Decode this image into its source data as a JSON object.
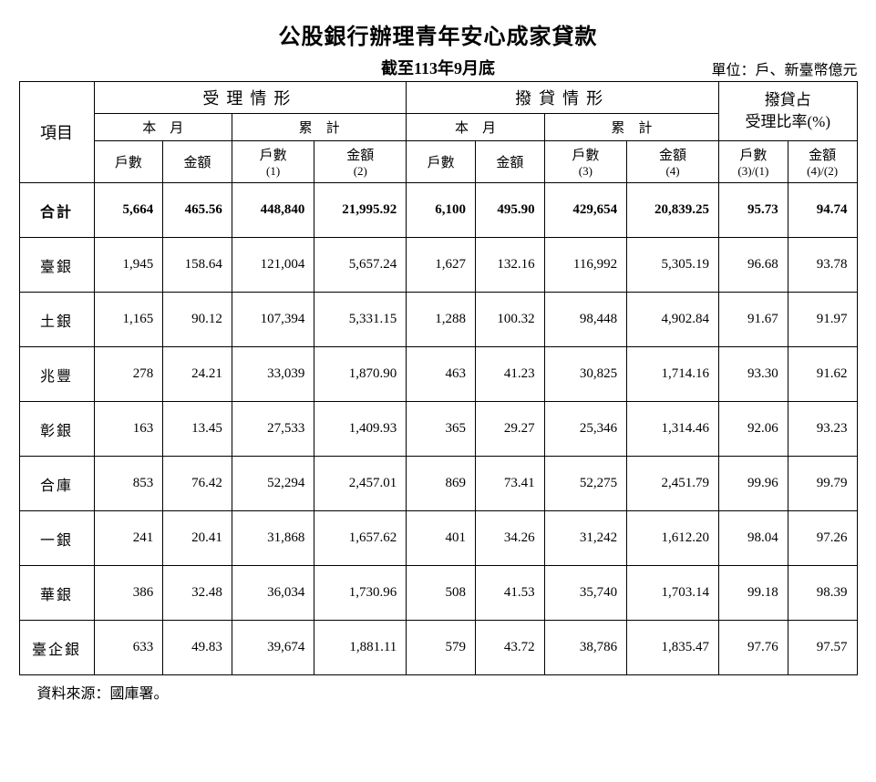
{
  "title": "公股銀行辦理青年安心成家貸款",
  "subtitle": "截至113年9月底",
  "unit": "單位：戶、新臺幣億元",
  "source": "資料來源：國庫署。",
  "headers": {
    "item": "項目",
    "accept": "受理情形",
    "disburse": "撥貸情形",
    "ratio_line1": "撥貸占",
    "ratio_line2": "受理比率(%)",
    "month": "本　月",
    "cum": "累　計",
    "count": "戶數",
    "amount": "金額",
    "sub1": "(1)",
    "sub2": "(2)",
    "sub3": "(3)",
    "sub4": "(4)",
    "ratio31": "(3)/(1)",
    "ratio42": "(4)/(2)"
  },
  "rows": [
    {
      "label": "合計",
      "bold": true,
      "c": [
        "5,664",
        "465.56",
        "448,840",
        "21,995.92",
        "6,100",
        "495.90",
        "429,654",
        "20,839.25",
        "95.73",
        "94.74"
      ]
    },
    {
      "label": "臺銀",
      "bold": false,
      "c": [
        "1,945",
        "158.64",
        "121,004",
        "5,657.24",
        "1,627",
        "132.16",
        "116,992",
        "5,305.19",
        "96.68",
        "93.78"
      ]
    },
    {
      "label": "土銀",
      "bold": false,
      "c": [
        "1,165",
        "90.12",
        "107,394",
        "5,331.15",
        "1,288",
        "100.32",
        "98,448",
        "4,902.84",
        "91.67",
        "91.97"
      ]
    },
    {
      "label": "兆豐",
      "bold": false,
      "c": [
        "278",
        "24.21",
        "33,039",
        "1,870.90",
        "463",
        "41.23",
        "30,825",
        "1,714.16",
        "93.30",
        "91.62"
      ]
    },
    {
      "label": "彰銀",
      "bold": false,
      "c": [
        "163",
        "13.45",
        "27,533",
        "1,409.93",
        "365",
        "29.27",
        "25,346",
        "1,314.46",
        "92.06",
        "93.23"
      ]
    },
    {
      "label": "合庫",
      "bold": false,
      "c": [
        "853",
        "76.42",
        "52,294",
        "2,457.01",
        "869",
        "73.41",
        "52,275",
        "2,451.79",
        "99.96",
        "99.79"
      ]
    },
    {
      "label": "一銀",
      "bold": false,
      "c": [
        "241",
        "20.41",
        "31,868",
        "1,657.62",
        "401",
        "34.26",
        "31,242",
        "1,612.20",
        "98.04",
        "97.26"
      ]
    },
    {
      "label": "華銀",
      "bold": false,
      "c": [
        "386",
        "32.48",
        "36,034",
        "1,730.96",
        "508",
        "41.53",
        "35,740",
        "1,703.14",
        "99.18",
        "98.39"
      ]
    },
    {
      "label": "臺企銀",
      "bold": false,
      "c": [
        "633",
        "49.83",
        "39,674",
        "1,881.11",
        "579",
        "43.72",
        "38,786",
        "1,835.47",
        "97.76",
        "97.57"
      ]
    }
  ],
  "colwidths": [
    "78",
    "72",
    "72",
    "86",
    "96",
    "72",
    "72",
    "86",
    "96",
    "72",
    "72"
  ],
  "style": {
    "background_color": "#ffffff",
    "border_color": "#000000",
    "text_color": "#000000",
    "title_fontsize": 24,
    "subtitle_fontsize": 18,
    "cell_fontsize": 15,
    "font_family": "serif"
  }
}
